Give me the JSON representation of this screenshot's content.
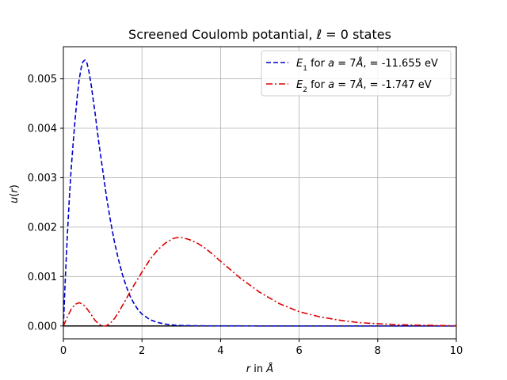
{
  "chart_data": {
    "type": "line",
    "title": "Screened Coulomb potantial, ℓ = 0 states",
    "xlabel": "r in Å",
    "ylabel": "u(r)",
    "xlim": [
      0,
      10
    ],
    "ylim": [
      -0.00026,
      0.00565
    ],
    "xticks": [
      0,
      2,
      4,
      6,
      8,
      10
    ],
    "yticks": [
      0.0,
      0.001,
      0.002,
      0.003,
      0.004,
      0.005
    ],
    "grid": true,
    "legend_position": "top-right",
    "colors": {
      "series1": "#0000cc",
      "series2": "#dd0000",
      "zero_line": "#000000",
      "grid": "#b0b0b0"
    },
    "series": [
      {
        "name": "E1 for a = 7Å, = -11.655 eV",
        "legend": {
          "sym": "E",
          "sub": "1",
          "mid": " for ",
          "var": "a",
          "eq": " = 7",
          "unit": "Å",
          "tail": ", = -11.655 eV"
        },
        "style": "dashed",
        "x": [
          0,
          0.05,
          0.1,
          0.15,
          0.2,
          0.25,
          0.3,
          0.35,
          0.4,
          0.45,
          0.5,
          0.55,
          0.6,
          0.65,
          0.7,
          0.75,
          0.8,
          0.9,
          1.0,
          1.1,
          1.2,
          1.3,
          1.4,
          1.5,
          1.6,
          1.7,
          1.8,
          1.9,
          2.0,
          2.2,
          2.4,
          2.6,
          2.8,
          3.0,
          3.5,
          4.0,
          5.0,
          6.0,
          8.0,
          10.0
        ],
        "y": [
          0.0,
          0.00097,
          0.00182,
          0.00256,
          0.00319,
          0.00371,
          0.00419,
          0.00462,
          0.00497,
          0.00521,
          0.00535,
          0.00538,
          0.00532,
          0.00515,
          0.00492,
          0.00463,
          0.00435,
          0.00372,
          0.00316,
          0.0026,
          0.00212,
          0.0017,
          0.00135,
          0.00105,
          0.0008,
          0.0006,
          0.00045,
          0.00033,
          0.00024,
          0.00013,
          7e-05,
          3.8e-05,
          2e-05,
          1e-05,
          3e-06,
          1e-06,
          0,
          0,
          0,
          0
        ]
      },
      {
        "name": "E2 for a = 7Å, = -1.747 eV",
        "legend": {
          "sym": "E",
          "sub": "2",
          "mid": " for ",
          "var": "a",
          "eq": " = 7",
          "unit": "Å",
          "tail": ", = -1.747 eV"
        },
        "style": "dashdot",
        "x": [
          0,
          0.1,
          0.2,
          0.3,
          0.4,
          0.5,
          0.6,
          0.7,
          0.8,
          0.9,
          1.0,
          1.05,
          1.1,
          1.2,
          1.3,
          1.4,
          1.5,
          1.6,
          1.7,
          1.8,
          1.9,
          2.0,
          2.2,
          2.4,
          2.6,
          2.8,
          2.9,
          3.0,
          3.2,
          3.4,
          3.6,
          3.8,
          4.0,
          4.5,
          5.0,
          5.5,
          6.0,
          6.5,
          7.0,
          7.5,
          8.0,
          8.5,
          9.0,
          10.0
        ],
        "y": [
          0.0,
          0.00018,
          0.00034,
          0.00044,
          0.00047,
          0.00044,
          0.00035,
          0.00024,
          0.00012,
          4e-05,
          1e-06,
          0.0,
          1e-05,
          6e-05,
          0.00015,
          0.00027,
          0.00041,
          0.00055,
          0.00069,
          0.00083,
          0.00096,
          0.00109,
          0.00134,
          0.00154,
          0.00168,
          0.00177,
          0.00179,
          0.00179,
          0.00175,
          0.00168,
          0.00158,
          0.00145,
          0.00131,
          0.00097,
          0.00068,
          0.00045,
          0.00029,
          0.00019,
          0.00012,
          7e-05,
          4.5e-05,
          2.8e-05,
          1.8e-05,
          5e-06
        ]
      }
    ]
  }
}
